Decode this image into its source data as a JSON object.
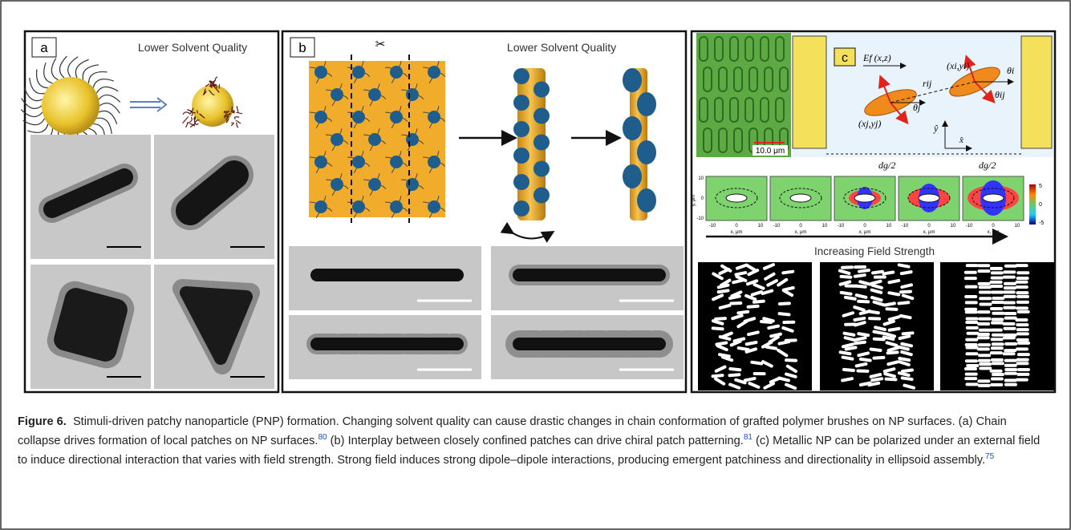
{
  "panel_a": {
    "label": "a",
    "heading": "Lower Solvent Quality"
  },
  "panel_b": {
    "label": "b",
    "heading": "Lower Solvent Quality"
  },
  "panel_c": {
    "label": "c",
    "scale_bar": "10.0 μm",
    "schematic": {
      "field": "Ef (x,z)",
      "point_i": "(xi,yi)",
      "point_j": "(xj,yj)",
      "distance": "rij",
      "theta_i": "θi",
      "theta_j": "θj",
      "theta_ij": "θij",
      "y_axis": "ŷ",
      "x_axis": "x̂",
      "gap_left": "dg/2",
      "gap_right": "dg/2"
    },
    "maps": {
      "y_label": "y, μm",
      "x_label": "x, μm",
      "y_ticks": [
        "10",
        "0",
        "-10"
      ],
      "x_ticks": [
        "-10",
        "0",
        "10"
      ],
      "colorbar_ticks": [
        "5",
        "0",
        "-5"
      ]
    },
    "arrow_label": "Increasing Field Strength"
  },
  "caption": {
    "label": "Figure 6.",
    "text_1": "Stimuli-driven patchy nanoparticle (PNP) formation. Changing solvent quality can cause drastic changes in chain conformation of grafted polymer brushes on NP surfaces. (a) Chain collapse drives formation of local patches on NP surfaces.",
    "ref_1": "80",
    "text_2": " (b) Interplay between closely confined patches can drive chiral patch patterning.",
    "ref_2": "81",
    "text_3": " (c) Metallic NP can be polarized under an external field to induce directional interaction that varies with field strength. Strong field induces strong dipole–dipole interactions, producing emergent patchiness and directionality in ellipsoid assembly.",
    "ref_3": "75"
  }
}
